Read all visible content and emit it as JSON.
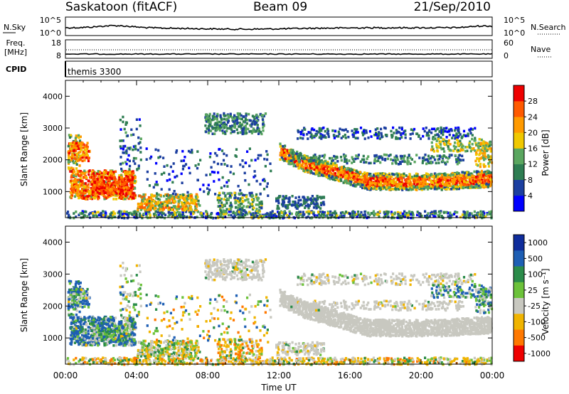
{
  "header": {
    "station": "Saskatoon (fitACF)",
    "beam": "Beam 09",
    "date": "21/Sep/2010"
  },
  "noise_panel": {
    "left_label": "N.Sky",
    "right_label": "N.Search",
    "left_ticks": [
      "10^5",
      "10^0"
    ],
    "right_ticks": [
      "10^5",
      "10^0"
    ]
  },
  "freq_panel": {
    "left_label_top": "Freq.",
    "left_label_bottom": "[MHz]",
    "left_ticks": [
      "18",
      "8"
    ],
    "right_label": "Nave",
    "right_ticks": [
      "60",
      "0"
    ]
  },
  "cpid_panel": {
    "label": "CPID",
    "value": "themis 3300"
  },
  "colors": {
    "power_scale": [
      "#0000ff",
      "#1c3fa0",
      "#2e7d52",
      "#5aa65f",
      "#f0c800",
      "#ff9a00",
      "#ff5a00",
      "#ee0000"
    ],
    "velocity_scale": [
      "#0f2d9c",
      "#1e5fb4",
      "#2b8c4a",
      "#6cc23a",
      "#c8c8c0",
      "#f0b400",
      "#ff7800",
      "#ee0000"
    ]
  },
  "chart_data": [
    {
      "type": "heatmap",
      "name": "power",
      "ylabel": "Slant Range [km]",
      "ylim": [
        180,
        4500
      ],
      "xlim": [
        0,
        24
      ],
      "y_ticks": [
        1000,
        2000,
        3000,
        4000
      ],
      "colorbar_label": "Power [dB]",
      "colorbar_ticks": [
        4,
        8,
        12,
        16,
        20,
        24,
        28
      ],
      "colorbar_range": [
        0,
        32
      ]
    },
    {
      "type": "heatmap",
      "name": "velocity",
      "ylabel": "Slant Range [km]",
      "xlabel": "Time UT",
      "ylim": [
        180,
        4500
      ],
      "xlim": [
        0,
        24
      ],
      "y_ticks": [
        1000,
        2000,
        3000,
        4000
      ],
      "x_tick_labels": [
        "00:00",
        "04:00",
        "08:00",
        "12:00",
        "16:00",
        "20:00",
        "00:00"
      ],
      "colorbar_label": "Velocity [m s⁻¹]",
      "colorbar_ticks": [
        "1000",
        "500",
        "100",
        "25",
        "-25",
        "-100",
        "-500",
        "-1000"
      ]
    }
  ]
}
